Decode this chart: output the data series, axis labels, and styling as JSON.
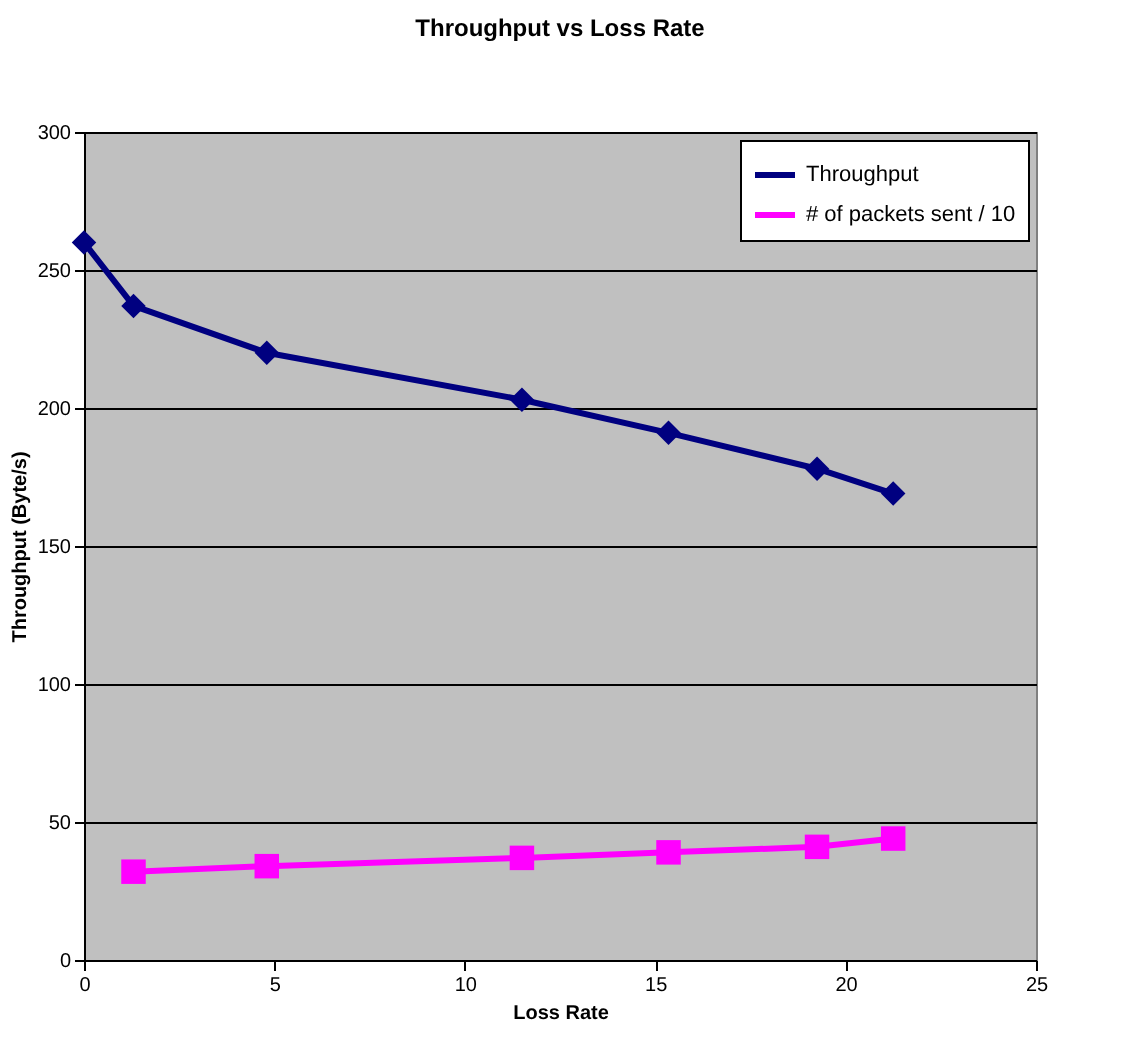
{
  "chart_data": {
    "type": "line",
    "title": "Throughput vs Loss Rate",
    "xlabel": "Loss Rate",
    "ylabel": "Throughput (Byte/s)",
    "x": [
      0,
      1.3,
      4.8,
      11.5,
      15.35,
      19.25,
      21.25
    ],
    "series": [
      {
        "name": "Throughput",
        "color": "#000080",
        "marker": "diamond",
        "values": [
          260,
          237,
          220,
          203,
          191,
          178,
          169
        ]
      },
      {
        "name": "# of packets sent / 10",
        "color": "#ff00ff",
        "marker": "square",
        "values": [
          null,
          32,
          34,
          37,
          39,
          41,
          44
        ]
      }
    ],
    "xlim": [
      0,
      25
    ],
    "xticks": [
      0,
      5,
      10,
      15,
      20,
      25
    ],
    "ylim": [
      0,
      300
    ],
    "yticks": [
      0,
      50,
      100,
      150,
      200,
      250,
      300
    ],
    "grid": "y",
    "legend": "top right",
    "line_style": "solid"
  }
}
